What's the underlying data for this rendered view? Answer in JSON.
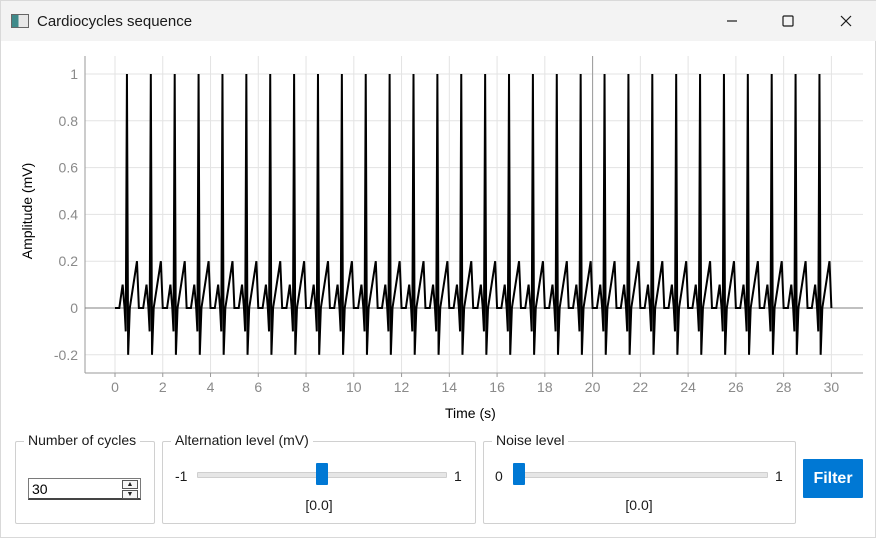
{
  "window": {
    "title": "Cardiocycles sequence",
    "icon": "app-window-icon",
    "controls": [
      "minimize-icon",
      "maximize-icon",
      "close-icon"
    ]
  },
  "chart_data": {
    "type": "line",
    "title": "",
    "xlabel": "Time (s)",
    "ylabel": "Amplitude (mV)",
    "xlim": [
      -1.1,
      31.4
    ],
    "ylim": [
      -0.28,
      1.02
    ],
    "x_ticks": [
      0,
      2,
      4,
      6,
      8,
      10,
      12,
      14,
      16,
      18,
      20,
      22,
      24,
      26,
      28,
      30
    ],
    "y_ticks": [
      -0.2,
      0,
      0.2,
      0.4,
      0.6,
      0.8,
      1
    ],
    "y_tick_labels": [
      "-0.2",
      "0",
      "0.2",
      "0.4",
      "0.6",
      "0.8",
      "1"
    ],
    "grid": true,
    "line_color": "#000000",
    "description_cycle": {
      "num_cycles": 30,
      "period_s": 1.0,
      "first_r_peak_s": 0.5,
      "baseline_mV": 0,
      "q_mV": -0.1,
      "r_mV": 1.0,
      "s_mV": -0.2,
      "t_mV": 0.2,
      "p_mV": 0.1
    },
    "r_peak_times": [
      0.5,
      1.5,
      2.5,
      3.5,
      4.5,
      5.5,
      6.5,
      7.5,
      8.5,
      9.5,
      10.5,
      11.5,
      12.5,
      13.5,
      14.5,
      15.5,
      16.5,
      17.5,
      18.5,
      19.5,
      20.5,
      21.5,
      22.5,
      23.5,
      24.5,
      25.5,
      26.5,
      27.5,
      28.5,
      29.5
    ]
  },
  "controls": {
    "cycles": {
      "title": "Number of cycles",
      "value": "30"
    },
    "alternation": {
      "title": "Alternation level (mV)",
      "min_label": "-1",
      "max_label": "1",
      "value_label": "[0.0]",
      "position": 0.5
    },
    "noise": {
      "title": "Noise level",
      "min_label": "0",
      "max_label": "1",
      "value_label": "[0.0]",
      "position": 0.0
    },
    "filter_label": "Filter",
    "accent": "#0078d4"
  }
}
